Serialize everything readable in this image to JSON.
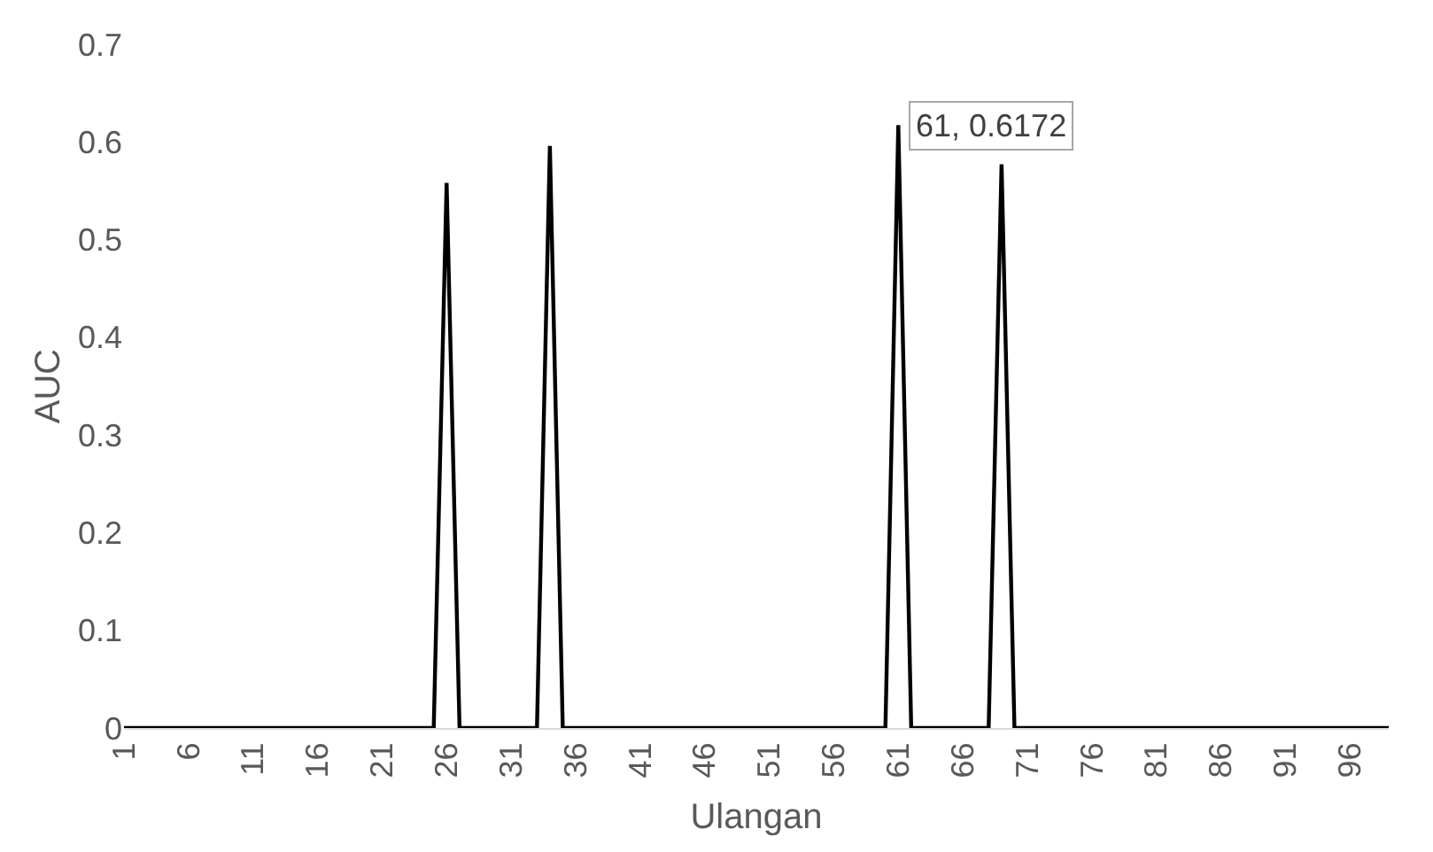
{
  "chart_data": {
    "type": "line",
    "xlabel": "Ulangan",
    "ylabel": "AUC",
    "x": [
      1,
      2,
      3,
      4,
      5,
      6,
      7,
      8,
      9,
      10,
      11,
      12,
      13,
      14,
      15,
      16,
      17,
      18,
      19,
      20,
      21,
      22,
      23,
      24,
      25,
      26,
      27,
      28,
      29,
      30,
      31,
      32,
      33,
      34,
      35,
      36,
      37,
      38,
      39,
      40,
      41,
      42,
      43,
      44,
      45,
      46,
      47,
      48,
      49,
      50,
      51,
      52,
      53,
      54,
      55,
      56,
      57,
      58,
      59,
      60,
      61,
      62,
      63,
      64,
      65,
      66,
      67,
      68,
      69,
      70,
      71,
      72,
      73,
      74,
      75,
      76,
      77,
      78,
      79,
      80,
      81,
      82,
      83,
      84,
      85,
      86,
      87,
      88,
      89,
      90,
      91,
      92,
      93,
      94,
      95,
      96,
      97,
      98,
      99
    ],
    "series": [
      {
        "color": "#000000",
        "values": [
          0,
          0,
          0,
          0,
          0,
          0,
          0,
          0,
          0,
          0,
          0,
          0,
          0,
          0,
          0,
          0,
          0,
          0,
          0,
          0,
          0,
          0,
          0,
          0,
          0,
          0.558,
          0,
          0,
          0,
          0,
          0,
          0,
          0,
          0.596,
          0,
          0,
          0,
          0,
          0,
          0,
          0,
          0,
          0,
          0,
          0,
          0,
          0,
          0,
          0,
          0,
          0,
          0,
          0,
          0,
          0,
          0,
          0,
          0,
          0,
          0,
          0.6172,
          0,
          0,
          0,
          0,
          0,
          0,
          0,
          0.577,
          0,
          0,
          0,
          0,
          0,
          0,
          0,
          0,
          0,
          0,
          0,
          0,
          0,
          0,
          0,
          0,
          0,
          0,
          0,
          0,
          0,
          0,
          0,
          0,
          0,
          0,
          0,
          0,
          0,
          0
        ]
      }
    ],
    "xlim": [
      1,
      99
    ],
    "xticks": [
      1,
      6,
      11,
      16,
      21,
      26,
      31,
      36,
      41,
      46,
      51,
      56,
      61,
      66,
      71,
      76,
      81,
      86,
      91,
      96
    ],
    "ylim": [
      0,
      0.7
    ],
    "yticks": [
      0,
      0.1,
      0.2,
      0.3,
      0.4,
      0.5,
      0.6,
      0.7
    ],
    "grid": false,
    "marker": "none",
    "line_style": "solid",
    "annotations": [
      {
        "text": "61, 0.6172",
        "x": 61,
        "y": 0.6172
      }
    ]
  }
}
